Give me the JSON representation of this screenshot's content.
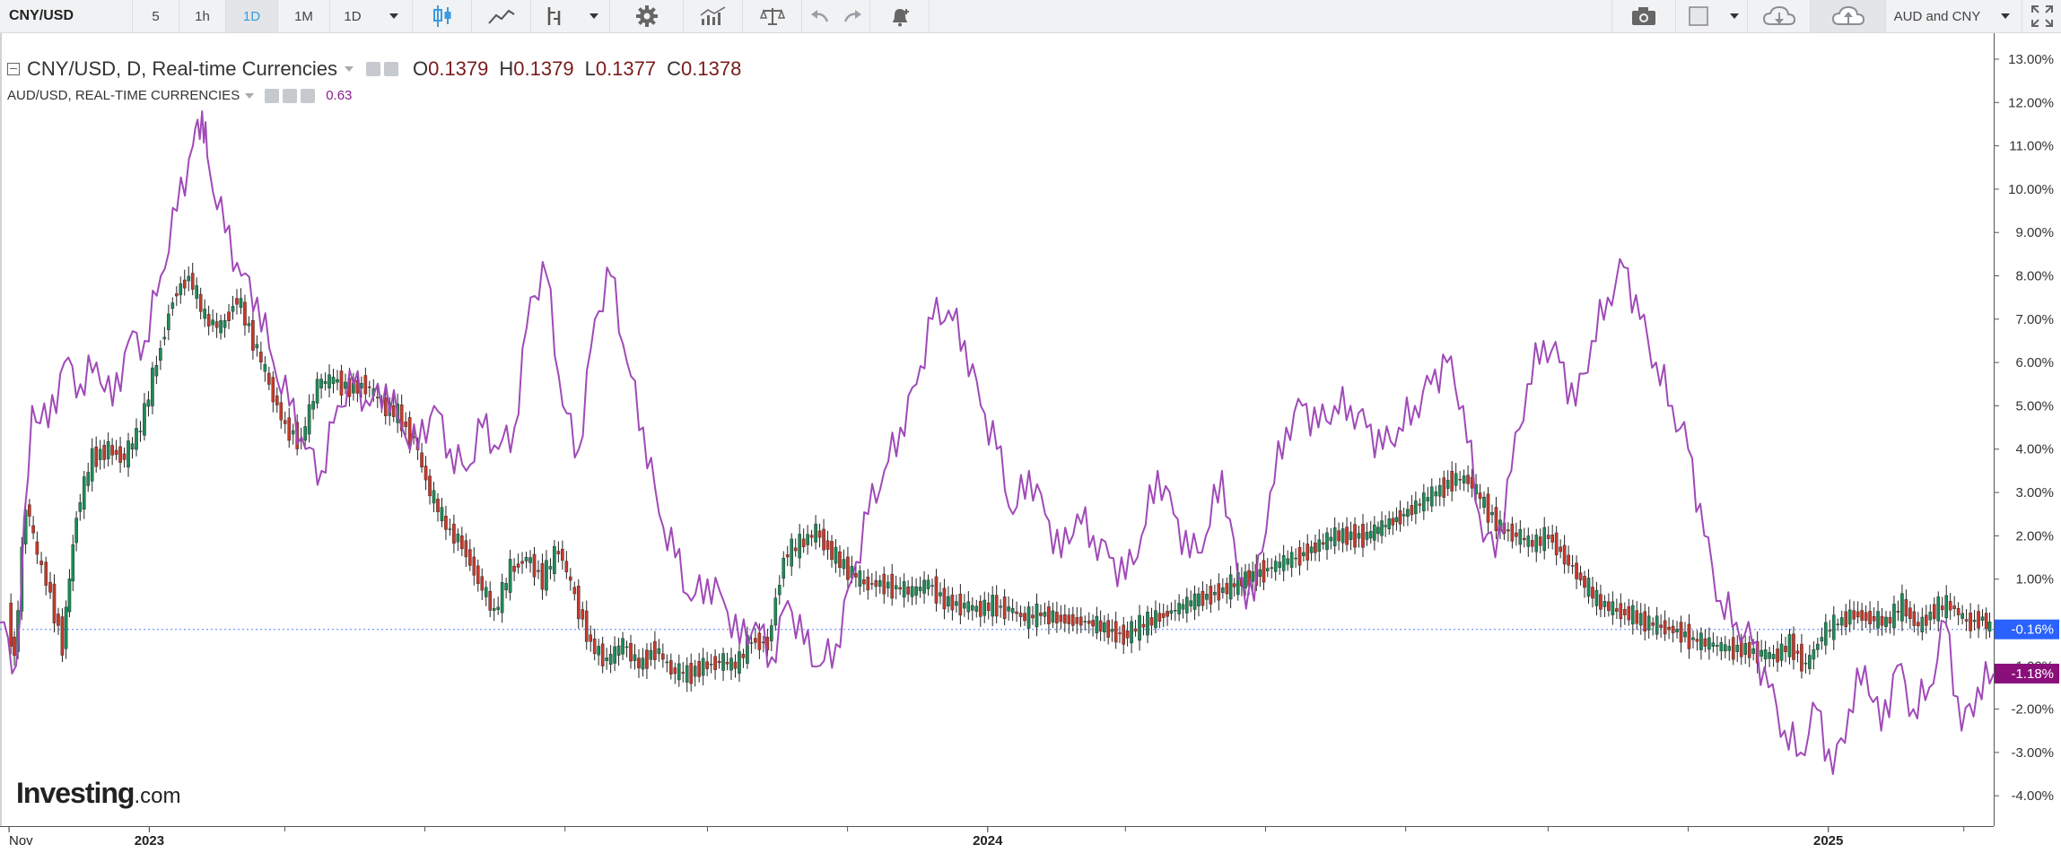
{
  "toolbar": {
    "symbol": "CNY/USD",
    "intervals": [
      "5",
      "1h",
      "1D",
      "1M",
      "1D"
    ],
    "active_interval_index": 2,
    "compare_label": "AUD and CNY",
    "accent_color": "#3a9be0",
    "icons": [
      "candlestick-icon",
      "line-chart-icon",
      "indicator-icon",
      "gear-icon",
      "studies-icon",
      "scales-icon",
      "undo-icon",
      "redo-icon",
      "alert-bell-icon",
      "camera-icon",
      "template-icon",
      "cloud-download-icon",
      "cloud-upload-icon",
      "fullscreen-icon"
    ]
  },
  "legend": {
    "main_title": "CNY/USD, D, Real-time Currencies",
    "open_key": "O",
    "open": "0.1379",
    "high_key": "H",
    "high": "0.1379",
    "low_key": "L",
    "low": "0.1377",
    "close_key": "C",
    "close": "0.1378",
    "compare_title": "AUD/USD, REAL-TIME CURRENCIES",
    "compare_value": "0.63"
  },
  "logo": {
    "main": "Investing",
    "suffix": ".com"
  },
  "chart_data": {
    "type": "line",
    "title": "",
    "x_labels": [
      "Nov",
      "2023",
      "2024",
      "2025"
    ],
    "x_range": [
      "2022-10-28",
      "2025-03-14"
    ],
    "y_axis": {
      "unit": "percent",
      "ticks": [
        "13.00%",
        "12.00%",
        "11.00%",
        "10.00%",
        "9.00%",
        "8.00%",
        "7.00%",
        "6.00%",
        "5.00%",
        "4.00%",
        "3.00%",
        "2.00%",
        "1.00%",
        "-1.00%",
        "-2.00%",
        "-3.00%",
        "-4.00%"
      ],
      "range": [
        -4.7,
        13.6
      ]
    },
    "series": [
      {
        "name": "CNY/USD",
        "style": "candlestick",
        "up_color": "#1e8a56",
        "down_color": "#c6392b",
        "last_value_label": "-0.16%",
        "label_color": "#2962ff",
        "x": [
          "2022-11-01",
          "2022-11-04",
          "2022-11-09",
          "2022-11-14",
          "2022-11-18",
          "2022-11-25",
          "2022-12-01",
          "2022-12-08",
          "2022-12-15",
          "2022-12-22",
          "2022-12-29",
          "2023-01-05",
          "2023-01-12",
          "2023-01-19",
          "2023-01-26",
          "2023-02-02",
          "2023-02-09",
          "2023-02-16",
          "2023-02-23",
          "2023-03-02",
          "2023-03-09",
          "2023-03-16",
          "2023-03-23",
          "2023-03-30",
          "2023-04-06",
          "2023-04-13",
          "2023-04-20",
          "2023-04-27",
          "2023-05-04",
          "2023-05-11",
          "2023-05-18",
          "2023-05-25",
          "2023-06-01",
          "2023-06-08",
          "2023-06-15",
          "2023-06-22",
          "2023-06-29",
          "2023-07-06",
          "2023-07-13",
          "2023-07-20",
          "2023-07-27",
          "2023-08-03",
          "2023-08-10",
          "2023-08-17",
          "2023-08-24",
          "2023-08-31",
          "2023-09-07",
          "2023-09-14",
          "2023-09-21",
          "2023-09-28",
          "2023-10-05",
          "2023-10-12",
          "2023-10-19",
          "2023-10-26",
          "2023-11-02",
          "2023-11-09",
          "2023-11-16",
          "2023-11-23",
          "2023-11-30",
          "2023-12-07",
          "2023-12-14",
          "2023-12-21",
          "2023-12-28",
          "2024-01-04",
          "2024-01-11",
          "2024-01-18",
          "2024-01-25",
          "2024-02-01",
          "2024-02-15",
          "2024-03-01",
          "2024-03-15",
          "2024-04-01",
          "2024-04-15",
          "2024-05-01",
          "2024-05-15",
          "2024-06-01",
          "2024-06-15",
          "2024-07-01",
          "2024-07-15",
          "2024-07-22",
          "2024-07-29",
          "2024-08-05",
          "2024-08-12",
          "2024-08-19",
          "2024-08-26",
          "2024-09-02",
          "2024-09-09",
          "2024-09-16",
          "2024-09-23",
          "2024-09-30",
          "2024-10-07",
          "2024-10-14",
          "2024-10-21",
          "2024-10-28",
          "2024-11-04",
          "2024-11-11",
          "2024-11-18",
          "2024-11-25",
          "2024-12-02",
          "2024-12-09",
          "2024-12-16",
          "2024-12-23",
          "2024-12-30",
          "2025-01-06",
          "2025-01-13",
          "2025-01-20",
          "2025-01-27",
          "2025-02-03",
          "2025-02-10",
          "2025-02-17",
          "2025-02-24",
          "2025-03-03",
          "2025-03-10",
          "2025-03-13"
        ],
        "y": [
          0.2,
          -0.8,
          2.8,
          1.5,
          1.0,
          -0.5,
          2.5,
          3.8,
          4.0,
          3.8,
          4.5,
          6.0,
          7.5,
          8.0,
          7.0,
          6.8,
          7.5,
          6.5,
          5.5,
          4.5,
          4.2,
          5.5,
          5.6,
          5.4,
          5.5,
          5.0,
          4.8,
          4.2,
          3.0,
          2.2,
          1.8,
          1.0,
          0.2,
          1.2,
          1.5,
          1.0,
          1.7,
          0.6,
          -0.5,
          -0.9,
          -0.5,
          -1.0,
          -0.6,
          -1.1,
          -1.2,
          -1.0,
          -0.9,
          -1.0,
          -0.4,
          -0.5,
          1.5,
          1.8,
          2.1,
          1.6,
          1.2,
          0.9,
          0.9,
          0.8,
          0.7,
          0.9,
          0.5,
          0.4,
          0.3,
          0.4,
          0.3,
          0.1,
          0.2,
          0.1,
          0.0,
          -0.3,
          0.1,
          0.5,
          0.8,
          1.2,
          1.5,
          2.0,
          2.0,
          2.5,
          3.0,
          3.3,
          3.3,
          2.7,
          2.2,
          2.0,
          1.8,
          2.0,
          1.5,
          1.0,
          0.5,
          0.3,
          0.2,
          0.0,
          -0.1,
          -0.2,
          -0.4,
          -0.5,
          -0.6,
          -0.6,
          -0.7,
          -0.8,
          -0.5,
          -1.0,
          -0.3,
          0.0,
          0.2,
          0.1,
          0.0,
          0.4,
          -0.1,
          0.3,
          0.4,
          0.0,
          0.1,
          -0.16
        ]
      },
      {
        "name": "AUD/USD",
        "style": "line",
        "color": "#a04ab8",
        "last_value_label": "-1.18%",
        "label_color": "#8a0f7a",
        "x": [
          "2022-10-28",
          "2022-11-04",
          "2022-11-11",
          "2022-11-18",
          "2022-11-25",
          "2022-12-02",
          "2022-12-09",
          "2022-12-16",
          "2022-12-23",
          "2022-12-30",
          "2023-01-06",
          "2023-01-13",
          "2023-01-20",
          "2023-01-24",
          "2023-01-27",
          "2023-02-03",
          "2023-02-10",
          "2023-02-17",
          "2023-02-24",
          "2023-03-03",
          "2023-03-10",
          "2023-03-17",
          "2023-03-24",
          "2023-03-31",
          "2023-04-07",
          "2023-04-14",
          "2023-04-21",
          "2023-04-28",
          "2023-05-05",
          "2023-05-12",
          "2023-05-19",
          "2023-05-26",
          "2023-06-02",
          "2023-06-09",
          "2023-06-16",
          "2023-06-23",
          "2023-06-30",
          "2023-07-07",
          "2023-07-14",
          "2023-07-21",
          "2023-07-28",
          "2023-08-04",
          "2023-08-11",
          "2023-08-18",
          "2023-08-25",
          "2023-09-01",
          "2023-09-08",
          "2023-09-15",
          "2023-09-22",
          "2023-09-29",
          "2023-10-06",
          "2023-10-13",
          "2023-10-20",
          "2023-10-27",
          "2023-11-03",
          "2023-11-10",
          "2023-11-17",
          "2023-11-24",
          "2023-12-01",
          "2023-12-08",
          "2023-12-15",
          "2023-12-22",
          "2023-12-29",
          "2024-01-05",
          "2024-01-12",
          "2024-01-19",
          "2024-01-26",
          "2024-02-02",
          "2024-02-09",
          "2024-02-16",
          "2024-02-23",
          "2024-03-01",
          "2024-03-08",
          "2024-03-15",
          "2024-03-22",
          "2024-03-29",
          "2024-04-05",
          "2024-04-12",
          "2024-04-19",
          "2024-04-26",
          "2024-05-03",
          "2024-05-10",
          "2024-05-17",
          "2024-05-24",
          "2024-05-31",
          "2024-06-07",
          "2024-06-14",
          "2024-06-21",
          "2024-06-28",
          "2024-07-05",
          "2024-07-12",
          "2024-07-19",
          "2024-07-26",
          "2024-08-02",
          "2024-08-09",
          "2024-08-16",
          "2024-08-23",
          "2024-08-30",
          "2024-09-06",
          "2024-09-13",
          "2024-09-20",
          "2024-09-27",
          "2024-10-04",
          "2024-10-11",
          "2024-10-18",
          "2024-10-25",
          "2024-11-01",
          "2024-11-08",
          "2024-11-15",
          "2024-11-22",
          "2024-11-29",
          "2024-12-06",
          "2024-12-13",
          "2024-12-20",
          "2024-12-27",
          "2025-01-03",
          "2025-01-10",
          "2025-01-17",
          "2025-01-24",
          "2025-01-31",
          "2025-02-07",
          "2025-02-14",
          "2025-02-21",
          "2025-02-28",
          "2025-03-07",
          "2025-03-14"
        ],
        "y": [
          0.0,
          -1.0,
          5.0,
          4.5,
          6.0,
          5.5,
          6.0,
          5.0,
          6.5,
          6.5,
          8.0,
          9.5,
          11.0,
          11.8,
          10.5,
          9.0,
          8.0,
          7.5,
          6.0,
          5.0,
          4.0,
          3.5,
          5.0,
          5.5,
          5.0,
          5.5,
          4.5,
          4.0,
          5.0,
          4.0,
          3.5,
          4.5,
          4.0,
          4.5,
          7.5,
          8.0,
          5.0,
          4.0,
          7.0,
          8.0,
          6.0,
          4.5,
          2.5,
          1.5,
          0.5,
          1.0,
          0.5,
          -0.5,
          0.0,
          -0.8,
          0.5,
          -0.5,
          -1.0,
          -0.5,
          1.0,
          2.5,
          3.5,
          4.5,
          5.5,
          7.0,
          7.2,
          6.5,
          5.0,
          4.0,
          2.5,
          3.5,
          2.5,
          1.5,
          2.5,
          2.0,
          1.5,
          1.0,
          2.0,
          3.5,
          2.5,
          1.5,
          2.0,
          3.5,
          1.0,
          0.5,
          3.0,
          4.5,
          5.0,
          4.5,
          5.0,
          5.0,
          4.5,
          4.0,
          4.5,
          5.0,
          5.5,
          6.0,
          5.0,
          2.5,
          1.5,
          3.5,
          5.5,
          6.5,
          6.0,
          5.0,
          6.5,
          7.5,
          8.2,
          7.0,
          6.0,
          5.0,
          4.0,
          2.0,
          0.5,
          0.0,
          -0.5,
          -1.5,
          -2.5,
          -3.0,
          -2.0,
          -3.5,
          -2.0,
          -1.0,
          -2.5,
          -1.0,
          -2.0,
          -1.5,
          0.0,
          -2.5,
          -1.5,
          -1.18
        ]
      }
    ],
    "reference_line": {
      "value": -0.16,
      "style": "dotted",
      "color": "#2962ff"
    },
    "grid": false,
    "legend_position": "top-left"
  }
}
